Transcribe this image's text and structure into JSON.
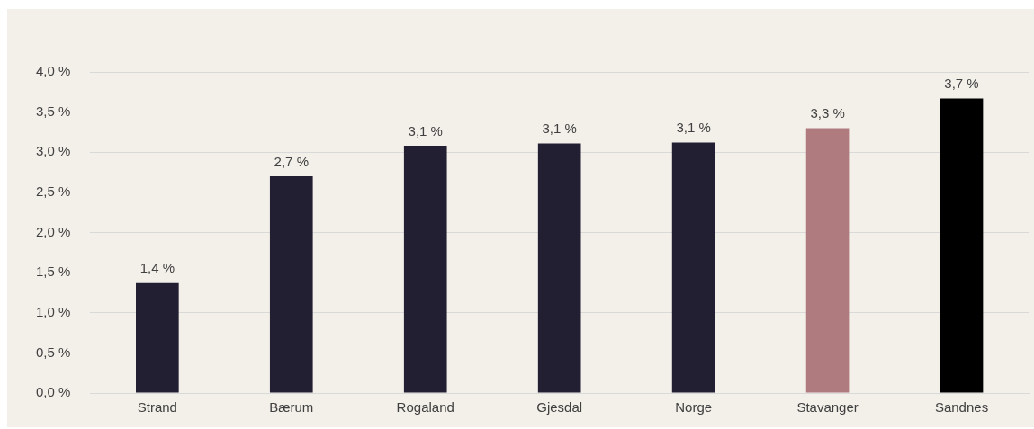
{
  "chart_data": {
    "type": "bar",
    "categories": [
      "Strand",
      "Bærum",
      "Rogaland",
      "Gjesdal",
      "Norge",
      "Stavanger",
      "Sandnes"
    ],
    "values": [
      1.37,
      2.7,
      3.08,
      3.11,
      3.12,
      3.3,
      3.67
    ],
    "colors": [
      "#231f33",
      "#231f33",
      "#231f33",
      "#231f33",
      "#231f33",
      "#b07b7e",
      "#000000"
    ],
    "value_labels": [
      "1,4 %",
      "2,7 %",
      "3,1 %",
      "3,1 %",
      "3,1 %",
      "3,3 %",
      "3,7 %"
    ],
    "ylim": [
      0,
      4
    ],
    "yticks": [
      {
        "value": 0,
        "label": "0,0 %"
      },
      {
        "value": 0.5,
        "label": "0,5 %"
      },
      {
        "value": 1,
        "label": "1,0 %"
      },
      {
        "value": 1.5,
        "label": "1,5 %"
      },
      {
        "value": 2,
        "label": "2,0 %"
      },
      {
        "value": 2.5,
        "label": "2,5 %"
      },
      {
        "value": 3,
        "label": "3,0 %"
      },
      {
        "value": 3.5,
        "label": "3,5 %"
      },
      {
        "value": 4,
        "label": "4,0 %"
      }
    ],
    "grid": "y",
    "legend": false
  }
}
